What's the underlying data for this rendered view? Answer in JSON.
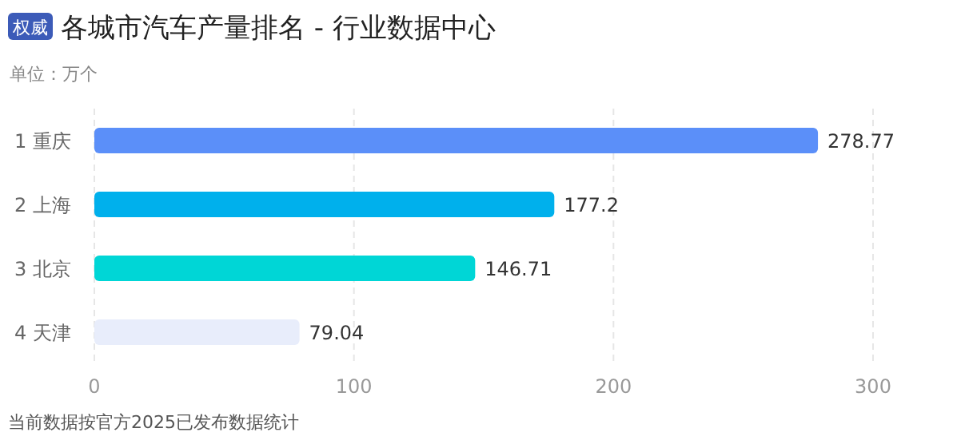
{
  "chart_data": {
    "type": "bar",
    "orientation": "horizontal",
    "title": "各城市汽车产量排名 - 行业数据中心",
    "subtitle": "单位：万个",
    "annotations": [
      "权威",
      "当前数据按官方2025已发布数据统计"
    ],
    "categories": [
      "1  重庆",
      "2  上海",
      "3  北京",
      "4  天津"
    ],
    "values": [
      278.77,
      177.2,
      146.71,
      79.04
    ],
    "colors": [
      "#5b8ff9",
      "#00b0ec",
      "#00d6d6",
      "#e8edfb"
    ],
    "xlim": [
      0,
      300
    ],
    "xticks": [
      0,
      100,
      200,
      300
    ],
    "grid": "x",
    "data_labels": true
  }
}
